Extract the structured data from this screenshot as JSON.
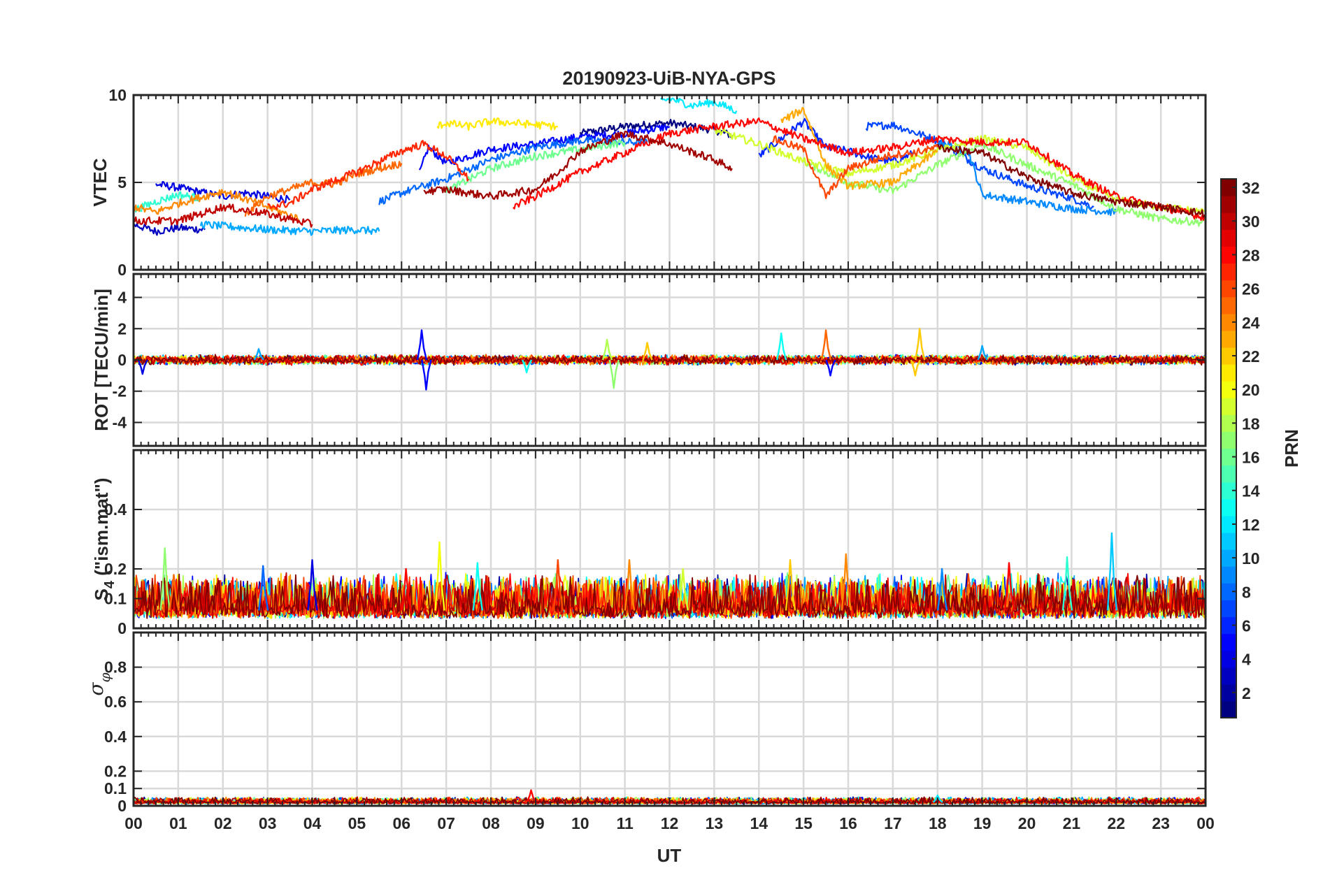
{
  "chart_data": {
    "type": "line",
    "title": "20190923-UiB-NYA-GPS",
    "xlabel": "UT",
    "x_ticks": [
      "00",
      "01",
      "02",
      "03",
      "04",
      "05",
      "06",
      "07",
      "08",
      "09",
      "10",
      "11",
      "12",
      "13",
      "14",
      "15",
      "16",
      "17",
      "18",
      "19",
      "20",
      "21",
      "22",
      "23",
      "00"
    ],
    "xlim": [
      0,
      24
    ],
    "grid": true,
    "colorbar": {
      "label": "PRN",
      "range": [
        1,
        32
      ],
      "ticks": [
        "2",
        "4",
        "6",
        "8",
        "10",
        "12",
        "14",
        "16",
        "18",
        "20",
        "22",
        "24",
        "26",
        "28",
        "30",
        "32"
      ],
      "colormap": "jet"
    },
    "panels": [
      {
        "id": "vtec",
        "ylabel": "VTEC",
        "ylim": [
          0,
          10
        ],
        "ytick_labels": [
          "0",
          "5",
          "10"
        ],
        "ytick_values": [
          0,
          5,
          10
        ],
        "series": [
          {
            "prn": 1,
            "x": [
              10.0,
              11.0,
              12.0,
              13.0,
              13.4
            ],
            "y": [
              7.8,
              8.2,
              8.4,
              8.0,
              7.7
            ]
          },
          {
            "prn": 3,
            "x": [
              0.0,
              0.5,
              1.0,
              1.6
            ],
            "y": [
              2.6,
              2.2,
              2.4,
              2.3
            ]
          },
          {
            "prn": 4,
            "x": [
              0.5,
              1.0,
              2.0,
              2.5,
              3.5
            ],
            "y": [
              4.9,
              4.7,
              4.2,
              4.4,
              4.0
            ]
          },
          {
            "prn": 5,
            "x": [
              6.4,
              6.6,
              7.0,
              8.0,
              9.0,
              10.0,
              11.0,
              12.0
            ],
            "y": [
              5.5,
              7.0,
              6.1,
              6.9,
              7.2,
              7.6,
              7.8,
              8.2
            ]
          },
          {
            "prn": 6,
            "x": [
              14.0,
              14.5,
              15.0,
              15.5,
              16.0,
              16.5,
              17.0,
              17.5
            ],
            "y": [
              6.5,
              7.5,
              8.5,
              7.0,
              6.8,
              6.4,
              6.2,
              6.7
            ]
          },
          {
            "prn": 7,
            "x": [
              16.4,
              17.0,
              18.0,
              19.0,
              20.0,
              21.0,
              21.5
            ],
            "y": [
              8.2,
              8.3,
              7.4,
              5.8,
              4.8,
              4.1,
              3.6
            ]
          },
          {
            "prn": 8,
            "x": [
              5.5,
              6.0,
              7.0,
              8.0,
              9.0,
              10.0,
              11.0,
              11.5
            ],
            "y": [
              3.9,
              4.4,
              5.2,
              6.3,
              7.0,
              7.4,
              7.3,
              7.3
            ]
          },
          {
            "prn": 9,
            "x": [
              18.0,
              18.7,
              19.0,
              20.0,
              21.0,
              21.5,
              22.0
            ],
            "y": [
              7.4,
              6.7,
              4.3,
              3.9,
              3.5,
              3.4,
              3.3
            ]
          },
          {
            "prn": 10,
            "x": [
              1.5,
              2.5,
              3.0,
              4.0,
              5.0,
              5.5
            ],
            "y": [
              2.6,
              2.4,
              2.3,
              2.2,
              2.3,
              2.2
            ]
          },
          {
            "prn": 12,
            "x": [
              11.8,
              12.0,
              12.5,
              13.0,
              13.5
            ],
            "y": [
              9.6,
              9.8,
              9.4,
              9.6,
              9.1
            ]
          },
          {
            "prn": 14,
            "x": [
              0.0,
              0.5,
              1.0,
              1.5
            ],
            "y": [
              3.4,
              3.9,
              4.3,
              4.1
            ]
          },
          {
            "prn": 16,
            "x": [
              7.0,
              8.0,
              9.0,
              10.0,
              11.0
            ],
            "y": [
              4.5,
              5.8,
              6.5,
              6.9,
              7.3
            ]
          },
          {
            "prn": 17,
            "x": [
              15.0,
              16.0,
              17.0,
              18.0,
              19.0,
              20.0,
              21.0,
              22.0,
              23.0,
              24.0
            ],
            "y": [
              6.2,
              5.0,
              4.5,
              6.0,
              7.2,
              6.0,
              4.9,
              3.5,
              2.9,
              2.7
            ]
          },
          {
            "prn": 19,
            "x": [
              13.0,
              14.0,
              15.0,
              16.0,
              17.0,
              18.0,
              19.0,
              20.0,
              21.0,
              22.0,
              23.0,
              24.0
            ],
            "y": [
              8.0,
              7.2,
              6.2,
              5.5,
              6.0,
              6.8,
              7.5,
              7.0,
              5.3,
              4.0,
              3.6,
              3.3
            ]
          },
          {
            "prn": 21,
            "x": [
              6.8,
              7.0,
              7.5,
              8.0,
              9.0,
              9.5
            ],
            "y": [
              8.2,
              8.4,
              8.2,
              8.5,
              8.3,
              8.2
            ]
          },
          {
            "prn": 23,
            "x": [
              14.5,
              15.0,
              15.5,
              16.0,
              17.0,
              18.0
            ],
            "y": [
              8.5,
              9.2,
              6.0,
              4.8,
              5.0,
              6.8
            ]
          },
          {
            "prn": 24,
            "x": [
              0.0,
              0.5,
              1.0,
              2.0,
              3.0,
              3.7
            ],
            "y": [
              3.6,
              3.3,
              3.8,
              4.5,
              3.6,
              2.9
            ]
          },
          {
            "prn": 25,
            "x": [
              2.5,
              3.0,
              4.0,
              4.5,
              5.0,
              6.0
            ],
            "y": [
              3.2,
              4.2,
              5.0,
              4.9,
              5.5,
              6.1
            ]
          },
          {
            "prn": 26,
            "x": [
              14.3,
              15.0,
              15.5,
              16.0,
              17.0,
              17.5,
              18.0
            ],
            "y": [
              7.5,
              6.9,
              4.2,
              5.8,
              6.6,
              6.7,
              7.0
            ]
          },
          {
            "prn": 27,
            "x": [
              3.0,
              3.5,
              4.0,
              4.5,
              5.0,
              6.0,
              6.5,
              7.0,
              7.5
            ],
            "y": [
              3.6,
              3.8,
              4.6,
              5.1,
              5.6,
              6.8,
              7.2,
              6.5,
              5.2
            ]
          },
          {
            "prn": 28,
            "x": [
              8.5,
              9.0,
              10.0,
              11.0,
              12.0,
              13.0,
              14.0,
              15.0,
              16.0,
              17.0,
              18.0,
              19.0,
              20.0,
              21.0,
              22.0,
              23.0,
              24.0
            ],
            "y": [
              3.6,
              4.2,
              5.6,
              6.7,
              7.8,
              8.2,
              8.5,
              7.5,
              6.7,
              7.0,
              7.5,
              7.3,
              7.3,
              5.5,
              4.2,
              3.6,
              3.0
            ]
          },
          {
            "prn": 30,
            "x": [
              0.0,
              1.0,
              2.0,
              3.0,
              4.0
            ],
            "y": [
              2.8,
              2.8,
              3.6,
              3.2,
              2.6
            ]
          },
          {
            "prn": 31,
            "x": [
              6.5,
              7.0,
              8.0,
              9.0,
              9.5,
              10.0,
              11.0,
              12.0,
              13.0,
              13.4
            ],
            "y": [
              4.5,
              4.6,
              4.2,
              4.6,
              5.6,
              6.8,
              7.8,
              7.2,
              6.3,
              5.8
            ]
          },
          {
            "prn": 32,
            "x": [
              18.0,
              19.0,
              20.0,
              21.0,
              22.0,
              23.0,
              24.0
            ],
            "y": [
              7.0,
              6.7,
              5.3,
              4.4,
              3.9,
              3.6,
              3.2
            ]
          }
        ]
      },
      {
        "id": "rot",
        "ylabel": "ROT [TECU/min]",
        "ylim": [
          -5.5,
          5.5
        ],
        "ytick_labels": [
          "-4",
          "-2",
          "0",
          "2",
          "4"
        ],
        "ytick_values": [
          -4,
          -2,
          0,
          2,
          4
        ],
        "baseline": 0,
        "noise_amplitude": 0.25,
        "spikes": [
          {
            "prn": 5,
            "x": 6.45,
            "y": 1.9
          },
          {
            "prn": 5,
            "x": 6.55,
            "y": -1.9
          },
          {
            "prn": 4,
            "x": 0.2,
            "y": -0.9
          },
          {
            "prn": 10,
            "x": 2.8,
            "y": 0.7
          },
          {
            "prn": 13,
            "x": 8.8,
            "y": -0.8
          },
          {
            "prn": 17,
            "x": 10.75,
            "y": -1.8
          },
          {
            "prn": 18,
            "x": 10.6,
            "y": 1.3
          },
          {
            "prn": 22,
            "x": 11.5,
            "y": 1.1
          },
          {
            "prn": 13,
            "x": 14.5,
            "y": 1.7
          },
          {
            "prn": 25,
            "x": 15.5,
            "y": 1.9
          },
          {
            "prn": 5,
            "x": 15.6,
            "y": -1.0
          },
          {
            "prn": 22,
            "x": 17.6,
            "y": 2.0
          },
          {
            "prn": 22,
            "x": 17.5,
            "y": -1.0
          },
          {
            "prn": 10,
            "x": 19.0,
            "y": 0.9
          }
        ]
      },
      {
        "id": "s4",
        "ylabel": "S4 (\"ism.mat\")",
        "ylim": [
          0,
          0.6
        ],
        "ytick_labels": [
          "0",
          "0.1",
          "0.2",
          "0.4"
        ],
        "ytick_values": [
          0,
          0.1,
          0.2,
          0.4
        ],
        "baseline": 0.06,
        "noise_amplitude": 0.05,
        "spikes": [
          {
            "prn": 17,
            "x": 0.7,
            "y": 0.27
          },
          {
            "prn": 25,
            "x": 0.9,
            "y": 0.18
          },
          {
            "prn": 8,
            "x": 2.9,
            "y": 0.21
          },
          {
            "prn": 4,
            "x": 4.0,
            "y": 0.23
          },
          {
            "prn": 28,
            "x": 6.1,
            "y": 0.2
          },
          {
            "prn": 20,
            "x": 6.85,
            "y": 0.29
          },
          {
            "prn": 13,
            "x": 7.7,
            "y": 0.22
          },
          {
            "prn": 26,
            "x": 9.5,
            "y": 0.23
          },
          {
            "prn": 24,
            "x": 11.1,
            "y": 0.23
          },
          {
            "prn": 19,
            "x": 12.3,
            "y": 0.2
          },
          {
            "prn": 22,
            "x": 14.7,
            "y": 0.23
          },
          {
            "prn": 24,
            "x": 15.95,
            "y": 0.25
          },
          {
            "prn": 9,
            "x": 18.1,
            "y": 0.2
          },
          {
            "prn": 28,
            "x": 19.6,
            "y": 0.22
          },
          {
            "prn": 11,
            "x": 21.9,
            "y": 0.32
          },
          {
            "prn": 14,
            "x": 20.9,
            "y": 0.24
          }
        ]
      },
      {
        "id": "sigma_phi",
        "ylabel": "σφ",
        "ylim": [
          0,
          1
        ],
        "ytick_labels": [
          "0",
          "0.1",
          "0.2",
          "0.4",
          "0.6",
          "0.8"
        ],
        "ytick_values": [
          0,
          0.1,
          0.2,
          0.4,
          0.6,
          0.8
        ],
        "baseline": 0.02,
        "noise_amplitude": 0.012,
        "spikes": [
          {
            "prn": 28,
            "x": 8.9,
            "y": 0.09
          },
          {
            "prn": 12,
            "x": 18.0,
            "y": 0.06
          }
        ]
      }
    ]
  }
}
